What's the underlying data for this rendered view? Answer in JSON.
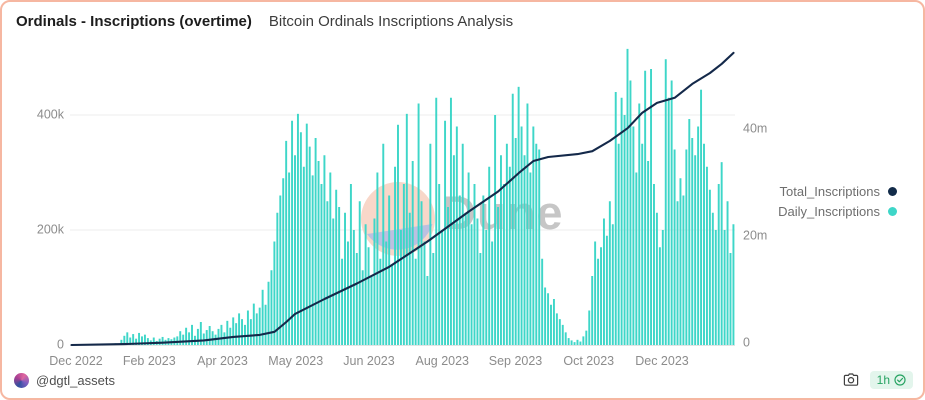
{
  "header": {
    "title": "Ordinals - Inscriptions (overtime)",
    "subtitle": "Bitcoin Ordinals Inscriptions Analysis"
  },
  "watermark": {
    "text": "Dune",
    "circle_top_color": "#f8d7c9",
    "circle_bottom_color": "#bcc0e0",
    "text_color": "#999999"
  },
  "legend": [
    {
      "label": "Total_Inscriptions",
      "color": "#122b49"
    },
    {
      "label": "Daily_Inscriptions",
      "color": "#3ed6c8"
    }
  ],
  "footer": {
    "author_handle": "@dgtl_assets",
    "camera_icon": "camera-icon",
    "refresh_badge": {
      "text": "1h",
      "icon": "check-circle-icon"
    }
  },
  "chart_data": {
    "type": "combo",
    "title": "Ordinals - Inscriptions (overtime)",
    "legend_position": "right",
    "grid": true,
    "x_axis": {
      "type": "time",
      "tick_labels": [
        "Dec 2022",
        "Feb 2023",
        "Apr 2023",
        "May 2023",
        "Jun 2023",
        "Aug 2023",
        "Sep 2023",
        "Oct 2023",
        "Dec 2023"
      ]
    },
    "y_axis_left": {
      "applies_to": "Daily_Inscriptions",
      "ticks": [
        {
          "label": "0",
          "value": 0
        },
        {
          "label": "200k",
          "value": 200000
        },
        {
          "label": "400k",
          "value": 400000
        }
      ],
      "approx_max_value": 520000
    },
    "y_axis_right": {
      "applies_to": "Total_Inscriptions",
      "ticks": [
        {
          "label": "0",
          "value": 0
        },
        {
          "label": "20m",
          "value": 20000000
        },
        {
          "label": "40m",
          "value": 40000000
        }
      ],
      "approx_final_value": 51000000
    },
    "series": [
      {
        "name": "Daily_Inscriptions",
        "type": "bar",
        "axis": "left",
        "color": "#3ed6c8",
        "units": "thousands of inscriptions per interval (Dec 2022 - Jan 2024)",
        "values": [
          0.3,
          0.5,
          0.4,
          0.8,
          0.6,
          1,
          0.7,
          1.2,
          0.9,
          1.5,
          1.1,
          2,
          1.4,
          2.5,
          1.8,
          3,
          2.2,
          9,
          16,
          22,
          13,
          19,
          11,
          21,
          15,
          18,
          12,
          8,
          13,
          7,
          11,
          14,
          9,
          12,
          10,
          13,
          15,
          24,
          18,
          30,
          22,
          35,
          16,
          28,
          40,
          20,
          26,
          33,
          24,
          18,
          28,
          35,
          22,
          42,
          30,
          48,
          38,
          55,
          45,
          35,
          60,
          45,
          72,
          55,
          65,
          96,
          70,
          110,
          130,
          180,
          230,
          260,
          290,
          355,
          300,
          390,
          330,
          402,
          370,
          310,
          385,
          345,
          295,
          360,
          320,
          280,
          330,
          250,
          300,
          220,
          270,
          240,
          150,
          230,
          180,
          280,
          200,
          160,
          250,
          130,
          210,
          170,
          120,
          220,
          300,
          150,
          350,
          180,
          260,
          140,
          310,
          383,
          200,
          280,
          402,
          230,
          320,
          150,
          420,
          250,
          180,
          120,
          350,
          160,
          430,
          280,
          200,
          390,
          240,
          430,
          330,
          380,
          260,
          350,
          230,
          300,
          210,
          280,
          220,
          160,
          260,
          200,
          310,
          180,
          400,
          240,
          330,
          280,
          350,
          310,
          437,
          360,
          449,
          380,
          330,
          420,
          300,
          380,
          350,
          340,
          150,
          100,
          90,
          70,
          80,
          55,
          45,
          35,
          22,
          12,
          8,
          5,
          9,
          6,
          15,
          25,
          60,
          120,
          180,
          150,
          170,
          220,
          190,
          250,
          210,
          440,
          350,
          430,
          400,
          515,
          460,
          380,
          300,
          420,
          350,
          477,
          320,
          480,
          280,
          230,
          170,
          200,
          497,
          430,
          460,
          340,
          250,
          290,
          260,
          340,
          393,
          360,
          330,
          380,
          444,
          350,
          310,
          270,
          230,
          200,
          280,
          318,
          200,
          250,
          160,
          210
        ]
      },
      {
        "name": "Total_Inscriptions",
        "type": "line",
        "axis": "right",
        "color": "#14294a",
        "units": "millions of inscriptions (cumulative)",
        "points": [
          [
            0,
            0
          ],
          [
            18,
            0.15
          ],
          [
            31,
            0.4
          ],
          [
            45,
            0.8
          ],
          [
            55,
            1.4
          ],
          [
            64,
            1.75
          ],
          [
            69,
            2.3
          ],
          [
            73,
            4
          ],
          [
            76,
            5.4
          ],
          [
            86,
            8
          ],
          [
            97,
            10.7
          ],
          [
            108,
            13.6
          ],
          [
            121,
            18
          ],
          [
            135,
            23.2
          ],
          [
            145,
            26.7
          ],
          [
            152,
            29.9
          ],
          [
            157,
            32
          ],
          [
            162,
            32.7
          ],
          [
            172,
            33.2
          ],
          [
            177,
            33.7
          ],
          [
            183,
            35.5
          ],
          [
            189,
            37.7
          ],
          [
            194,
            40.4
          ],
          [
            199,
            42.1
          ],
          [
            205,
            43
          ],
          [
            211,
            45.4
          ],
          [
            217,
            47.3
          ],
          [
            221,
            48.9
          ],
          [
            225,
            50.8
          ]
        ]
      }
    ]
  }
}
